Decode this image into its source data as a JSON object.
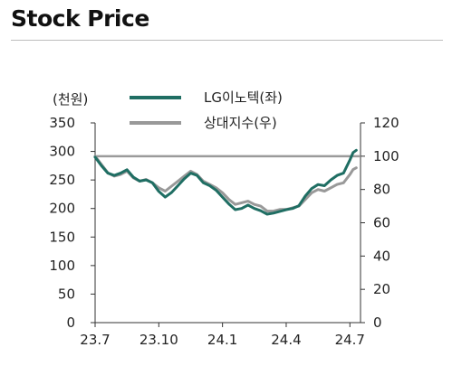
{
  "title": "Stock Price",
  "chart_data": {
    "type": "line",
    "title": "Stock Price",
    "y_left_unit": "(천원)",
    "y_left_range": [
      0,
      350
    ],
    "y_left_ticks": [
      0,
      50,
      100,
      150,
      200,
      250,
      300,
      350
    ],
    "y_right_range": [
      0,
      120
    ],
    "y_right_ticks": [
      0,
      20,
      40,
      60,
      80,
      100,
      120
    ],
    "x_ticks": [
      "23.7",
      "23.10",
      "24.1",
      "24.4",
      "24.7"
    ],
    "x_tick_positions": [
      0,
      3,
      6,
      9,
      12
    ],
    "x_range": [
      0,
      12.5
    ],
    "grid": false,
    "legend_position": "top-center",
    "reference_line": {
      "axis": "right",
      "value": 100
    },
    "series": [
      {
        "name": "LG이노텍(좌)",
        "axis": "left",
        "color": "#1f6e63",
        "x": [
          0,
          0.3,
          0.6,
          0.9,
          1.2,
          1.5,
          1.8,
          2.1,
          2.4,
          2.7,
          3.0,
          3.3,
          3.6,
          3.9,
          4.2,
          4.5,
          4.8,
          5.1,
          5.4,
          5.7,
          6.0,
          6.3,
          6.6,
          6.9,
          7.2,
          7.5,
          7.8,
          8.1,
          8.4,
          8.7,
          9.0,
          9.3,
          9.6,
          9.9,
          10.2,
          10.5,
          10.8,
          11.1,
          11.4,
          11.7,
          12.0,
          12.15,
          12.3
        ],
        "y": [
          290,
          275,
          262,
          258,
          262,
          268,
          255,
          248,
          250,
          245,
          230,
          220,
          228,
          240,
          252,
          262,
          258,
          245,
          240,
          232,
          220,
          208,
          198,
          200,
          206,
          200,
          196,
          190,
          192,
          195,
          198,
          200,
          205,
          222,
          235,
          242,
          240,
          250,
          258,
          262,
          285,
          298,
          302
        ]
      },
      {
        "name": "상대지수(우)",
        "axis": "right",
        "color": "#999999",
        "x": [
          0,
          0.3,
          0.6,
          0.9,
          1.2,
          1.5,
          1.8,
          2.1,
          2.4,
          2.7,
          3.0,
          3.3,
          3.6,
          3.9,
          4.2,
          4.5,
          4.8,
          5.1,
          5.4,
          5.7,
          6.0,
          6.3,
          6.6,
          6.9,
          7.2,
          7.5,
          7.8,
          8.1,
          8.4,
          8.7,
          9.0,
          9.3,
          9.6,
          9.9,
          10.2,
          10.5,
          10.8,
          11.1,
          11.4,
          11.7,
          12.0,
          12.15,
          12.3
        ],
        "y": [
          100,
          95,
          90,
          88,
          89,
          91,
          87,
          85,
          86,
          84,
          81,
          79,
          82,
          85,
          88,
          91,
          89,
          85,
          83,
          81,
          78,
          74,
          71,
          72,
          73,
          71,
          70,
          67,
          67,
          68,
          68,
          69,
          70,
          74,
          78,
          80,
          79,
          81,
          83,
          84,
          89,
          92,
          93
        ]
      }
    ]
  }
}
